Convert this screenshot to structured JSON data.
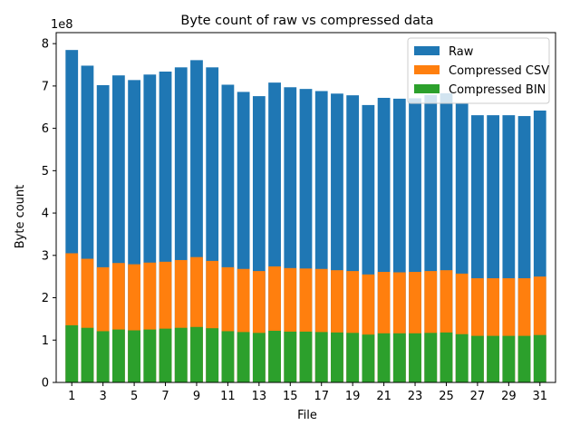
{
  "chart_data": {
    "type": "bar",
    "stacking": "overlay",
    "title": "Byte count of raw vs compressed data",
    "xlabel": "File",
    "ylabel": "Byte count",
    "y_offset_label": "1e8",
    "x": [
      1,
      2,
      3,
      4,
      5,
      6,
      7,
      8,
      9,
      10,
      11,
      12,
      13,
      14,
      15,
      16,
      17,
      18,
      19,
      20,
      21,
      22,
      23,
      24,
      25,
      26,
      27,
      28,
      29,
      30,
      31
    ],
    "x_ticks": [
      1,
      3,
      5,
      7,
      9,
      11,
      13,
      15,
      17,
      19,
      21,
      23,
      25,
      27,
      29,
      31
    ],
    "y_ticks": [
      0,
      1,
      2,
      3,
      4,
      5,
      6,
      7,
      8
    ],
    "ylim": [
      0,
      8.26
    ],
    "legend_position": "upper-right",
    "grid": false,
    "series": [
      {
        "name": "Raw",
        "color": "#1f77b4",
        "values": [
          7.85,
          7.48,
          7.02,
          7.25,
          7.14,
          7.27,
          7.34,
          7.44,
          7.61,
          7.44,
          7.03,
          6.86,
          6.76,
          7.08,
          6.97,
          6.93,
          6.88,
          6.82,
          6.78,
          6.55,
          6.72,
          6.7,
          6.71,
          6.79,
          6.83,
          6.6,
          6.31,
          6.31,
          6.31,
          6.29,
          6.42
        ]
      },
      {
        "name": "Compressed CSV",
        "color": "#ff7f0e",
        "values": [
          3.05,
          2.92,
          2.72,
          2.82,
          2.79,
          2.83,
          2.85,
          2.89,
          2.96,
          2.87,
          2.72,
          2.68,
          2.63,
          2.74,
          2.7,
          2.69,
          2.68,
          2.65,
          2.63,
          2.55,
          2.61,
          2.6,
          2.61,
          2.63,
          2.65,
          2.57,
          2.46,
          2.46,
          2.46,
          2.46,
          2.5
        ]
      },
      {
        "name": "Compressed BIN",
        "color": "#2ca02c",
        "values": [
          1.35,
          1.29,
          1.21,
          1.25,
          1.23,
          1.25,
          1.27,
          1.29,
          1.31,
          1.28,
          1.21,
          1.19,
          1.17,
          1.22,
          1.2,
          1.2,
          1.19,
          1.18,
          1.17,
          1.13,
          1.16,
          1.16,
          1.16,
          1.17,
          1.18,
          1.14,
          1.1,
          1.1,
          1.1,
          1.1,
          1.12
        ]
      }
    ]
  }
}
